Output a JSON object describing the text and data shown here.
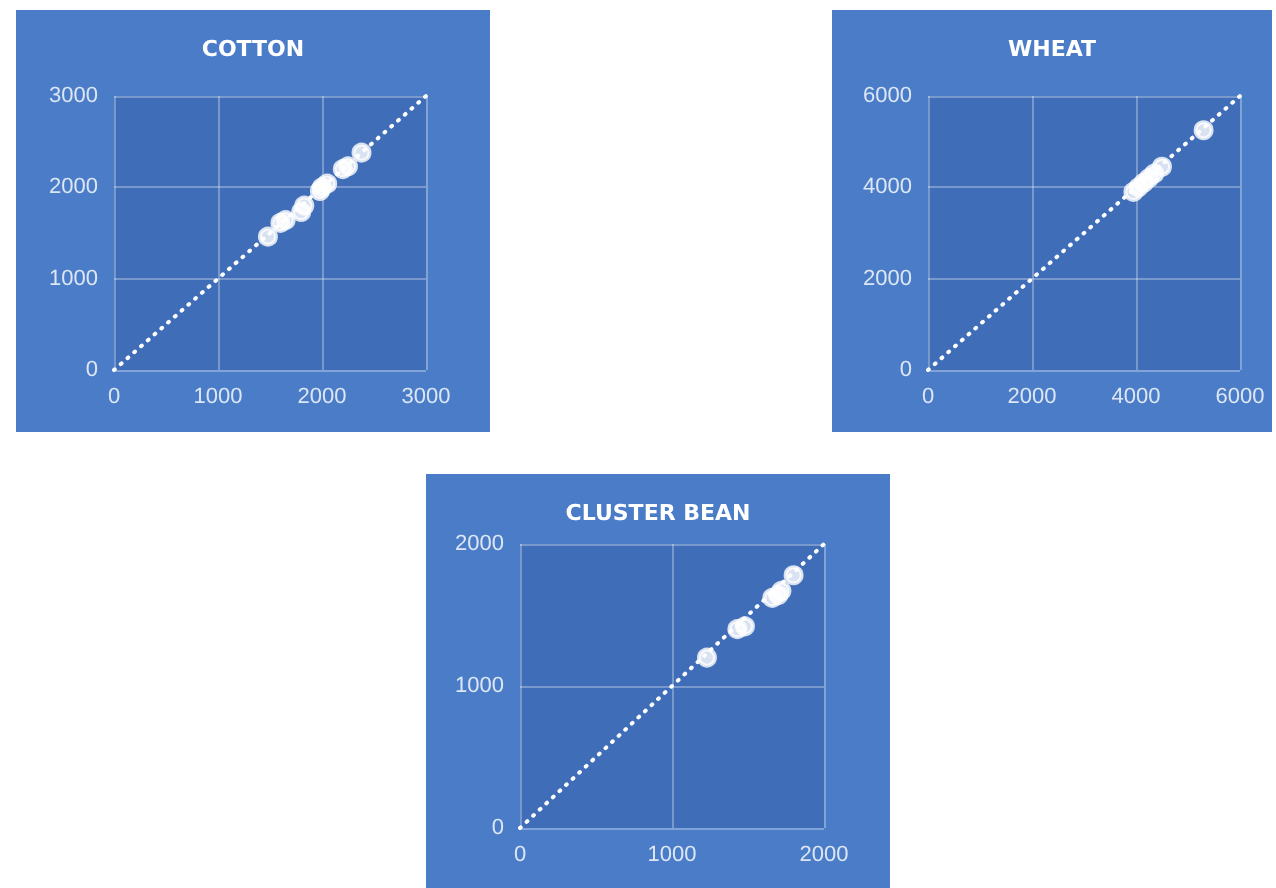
{
  "chart_data": [
    {
      "type": "scatter",
      "title": "COTTON",
      "xlim": [
        0,
        3000
      ],
      "ylim": [
        0,
        3000
      ],
      "xticks": [
        0,
        1000,
        2000,
        3000
      ],
      "yticks": [
        0,
        1000,
        2000,
        3000
      ],
      "grid": true,
      "series": [
        {
          "marker": "circle",
          "color": "#ffffff",
          "x": [
            1480,
            1600,
            1650,
            1800,
            1830,
            1980,
            2000,
            2050,
            2200,
            2250,
            2380
          ],
          "values": [
            1460,
            1610,
            1640,
            1730,
            1800,
            1960,
            2000,
            2040,
            2200,
            2230,
            2380
          ]
        },
        {
          "type": "line",
          "marker": "none",
          "line_style": "dotted",
          "color": "#ffffff",
          "x": [
            0,
            3000
          ],
          "values": [
            0,
            3000
          ]
        }
      ]
    },
    {
      "type": "scatter",
      "title": "WHEAT",
      "xlim": [
        0,
        6000
      ],
      "ylim": [
        0,
        6000
      ],
      "xticks": [
        0,
        2000,
        4000,
        6000
      ],
      "yticks": [
        0,
        2000,
        4000,
        6000
      ],
      "grid": true,
      "series": [
        {
          "marker": "circle",
          "color": "#ffffff",
          "x": [
            3950,
            4050,
            4150,
            4250,
            4350,
            4500,
            5300
          ],
          "values": [
            3900,
            4000,
            4100,
            4200,
            4300,
            4450,
            5250
          ]
        },
        {
          "type": "line",
          "marker": "none",
          "line_style": "dotted",
          "color": "#ffffff",
          "x": [
            0,
            6000
          ],
          "values": [
            0,
            6000
          ]
        }
      ]
    },
    {
      "type": "scatter",
      "title": "CLUSTER BEAN",
      "xlim": [
        0,
        2000
      ],
      "ylim": [
        0,
        2000
      ],
      "xticks": [
        0,
        1000,
        2000
      ],
      "yticks": [
        0,
        1000,
        2000
      ],
      "grid": true,
      "series": [
        {
          "marker": "circle",
          "color": "#ffffff",
          "x": [
            1230,
            1430,
            1480,
            1660,
            1700,
            1720,
            1800
          ],
          "values": [
            1200,
            1400,
            1420,
            1620,
            1640,
            1670,
            1780
          ]
        },
        {
          "type": "line",
          "marker": "none",
          "line_style": "dotted",
          "color": "#ffffff",
          "x": [
            0,
            2000
          ],
          "values": [
            0,
            2000
          ]
        }
      ]
    }
  ]
}
